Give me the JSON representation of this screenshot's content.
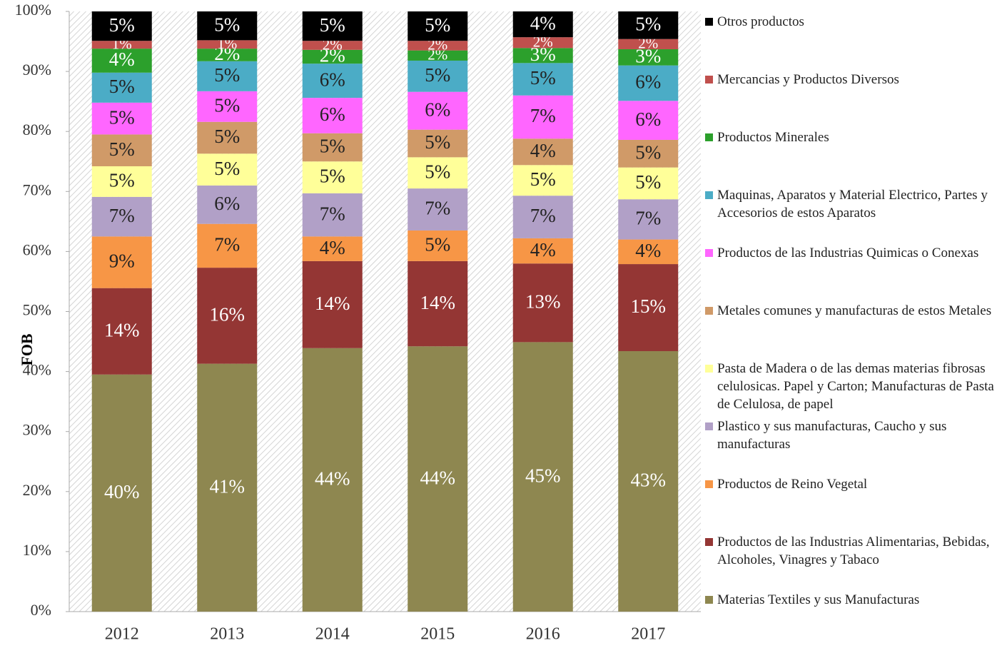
{
  "chart_data": {
    "type": "stacked_bar",
    "y_label": "FOB",
    "categories": [
      "2012",
      "2013",
      "2014",
      "2015",
      "2016",
      "2017"
    ],
    "ylim": [
      0,
      100
    ],
    "yticks": [
      {
        "value": 0,
        "label": "0%"
      },
      {
        "value": 10,
        "label": "10%"
      },
      {
        "value": 20,
        "label": "20%"
      },
      {
        "value": 30,
        "label": "30%"
      },
      {
        "value": 40,
        "label": "40%"
      },
      {
        "value": 50,
        "label": "50%"
      },
      {
        "value": 60,
        "label": "60%"
      },
      {
        "value": 70,
        "label": "70%"
      },
      {
        "value": 80,
        "label": "80%"
      },
      {
        "value": 90,
        "label": "90%"
      },
      {
        "value": 100,
        "label": "100%"
      }
    ],
    "series": [
      {
        "name": "Materias Textiles y sus Manufacturas",
        "color": "#8e8750",
        "values": [
          39.5,
          41.3,
          43.9,
          44.2,
          44.9,
          43.4
        ],
        "value_labels": [
          "40%",
          "41%",
          "44%",
          "44%",
          "45%",
          "43%"
        ]
      },
      {
        "name": "Productos de las Industrias Alimentarias, Bebidas, Alcoholes, Vinagres y Tabaco",
        "color": "#943634",
        "values": [
          14.4,
          16.0,
          14.5,
          14.2,
          13.1,
          14.5
        ],
        "value_labels": [
          "14%",
          "16%",
          "14%",
          "14%",
          "13%",
          "15%"
        ]
      },
      {
        "name": "Productos de Reino Vegetal",
        "color": "#f79646",
        "values": [
          8.6,
          7.3,
          4.1,
          5.1,
          4.2,
          4.1
        ],
        "value_labels": [
          "9%",
          "7%",
          "4%",
          "5%",
          "4%",
          "4%"
        ]
      },
      {
        "name": "Plastico y sus manufacturas, Caucho y sus manufacturas",
        "color": "#b1a0c7",
        "values": [
          6.6,
          6.4,
          7.2,
          7.0,
          7.1,
          6.7
        ],
        "value_labels": [
          "7%",
          "6%",
          "7%",
          "7%",
          "7%",
          "7%"
        ]
      },
      {
        "name": "Pasta de Madera o de las demas materias fibrosas celulosicas. Papel y Carton; Manufacturas de Pasta de Celulosa, de papel",
        "color": "#ffff99",
        "values": [
          5.1,
          5.3,
          5.3,
          5.2,
          5.1,
          5.3
        ],
        "value_labels": [
          "5%",
          "5%",
          "5%",
          "5%",
          "5%",
          "5%"
        ]
      },
      {
        "name": "Metales comunes y manufacturas de estos Metales",
        "color": "#d09a68",
        "values": [
          5.3,
          5.3,
          4.7,
          4.6,
          4.4,
          4.6
        ],
        "value_labels": [
          "5%",
          "5%",
          "5%",
          "5%",
          "4%",
          "5%"
        ]
      },
      {
        "name": "Productos de las Industrias Quimicas o Conexas",
        "color": "#ff66ff",
        "values": [
          5.3,
          5.1,
          5.9,
          6.3,
          7.2,
          6.5
        ],
        "value_labels": [
          "5%",
          "5%",
          "6%",
          "6%",
          "7%",
          "6%"
        ]
      },
      {
        "name": "Maquinas, Aparatos y Material Electrico, Partes y Accesorios de estos Aparatos",
        "color": "#4bacc6",
        "values": [
          5.0,
          5.0,
          5.7,
          5.2,
          5.4,
          5.9
        ],
        "value_labels": [
          "5%",
          "5%",
          "6%",
          "5%",
          "5%",
          "6%"
        ]
      },
      {
        "name": "Productos Minerales",
        "color": "#2ca02c",
        "values": [
          4.0,
          2.1,
          2.3,
          1.7,
          2.5,
          2.7
        ],
        "value_labels": [
          "4%",
          "2%",
          "2%",
          "2%",
          "3%",
          "3%"
        ]
      },
      {
        "name": "Mercancias y Productos Diversos",
        "color": "#c0504d",
        "values": [
          1.3,
          1.4,
          1.5,
          1.6,
          1.8,
          1.7
        ],
        "value_labels": [
          "1%",
          "1%",
          "2%",
          "2%",
          "2%",
          "2%"
        ]
      },
      {
        "name": "Otros productos",
        "color": "#000000",
        "values": [
          4.9,
          4.8,
          4.9,
          4.9,
          4.3,
          4.6
        ],
        "value_labels": [
          "5%",
          "5%",
          "5%",
          "5%",
          "4%",
          "5%"
        ]
      }
    ]
  }
}
